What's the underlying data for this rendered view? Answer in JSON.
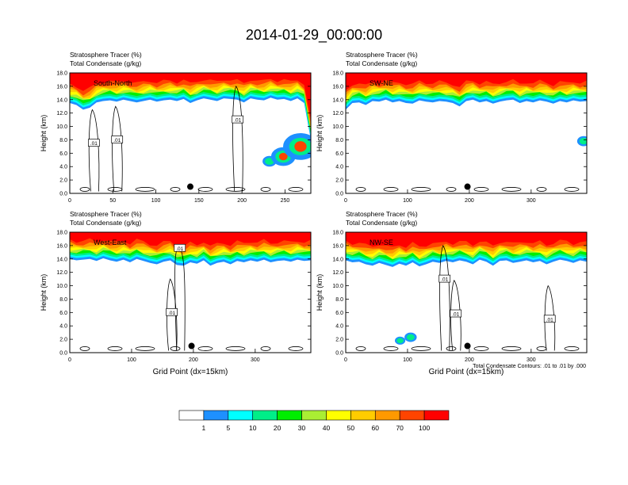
{
  "title": "2014-01-29_00:00:00",
  "colors": {
    "tracer_levels": [
      "#ffffff",
      "#1e90ff",
      "#00ffff",
      "#00ee88",
      "#00ee00",
      "#aaee33",
      "#ffff00",
      "#ffcc00",
      "#ff9900",
      "#ff4400",
      "#ff0000"
    ]
  },
  "chart_data": [
    {
      "type": "heatmap",
      "label": "South-North",
      "title_lines": [
        "Stratosphere Tracer   (%)",
        "Total Condensate   (g/kg)"
      ],
      "xlabel": "",
      "ylabel": "Height (km)",
      "xlim": [
        0,
        280
      ],
      "ylim": [
        0,
        18
      ],
      "xticks": [
        "0",
        "50",
        "100",
        "150",
        "200",
        "250"
      ],
      "xtick_values": [
        0,
        50,
        100,
        150,
        200,
        250
      ],
      "yticks": [
        "0.0",
        "2.0",
        "4.0",
        "6.0",
        "8.0",
        "10.0",
        "12.0",
        "14.0",
        "16.0",
        "18.0"
      ],
      "contour_labels": [
        {
          "text": ".01",
          "x": 28,
          "y": 7.5
        },
        {
          "text": ".01",
          "x": 55,
          "y": 8.0
        },
        {
          "text": ".01",
          "x": 195,
          "y": 11.0
        }
      ],
      "marker": {
        "x": 140,
        "y": 1.0
      },
      "tracer_base": [
        13.5,
        13.2,
        12.5,
        12.8,
        13.6,
        13.8,
        13.9,
        13.7,
        14.0,
        13.8,
        13.6,
        13.8,
        14.0,
        13.7,
        13.9,
        14.0,
        13.8,
        14.1,
        13.5,
        13.9,
        14.2,
        14.0,
        13.8,
        14.2,
        14.1,
        14.0,
        13.6,
        14.2,
        14.0,
        13.9,
        14.3,
        14.0,
        14.1,
        13.8,
        14.2,
        13.5,
        8.0
      ],
      "tracer_plume": [
        {
          "x": 232,
          "y": 4.8,
          "h": 1.6
        },
        {
          "x": 248,
          "y": 5.5,
          "h": 2.8
        },
        {
          "x": 268,
          "y": 7.0,
          "h": 4.0
        }
      ]
    },
    {
      "type": "heatmap",
      "label": "SW-NE",
      "title_lines": [
        "Stratosphere Tracer   (%)",
        "Total Condensate   (g/kg)"
      ],
      "xlabel": "",
      "ylabel": "Height (km)",
      "xlim": [
        0,
        390
      ],
      "ylim": [
        0,
        18
      ],
      "xticks": [
        "0",
        "100",
        "200",
        "300"
      ],
      "xtick_values": [
        0,
        100,
        200,
        300
      ],
      "yticks": [
        "0.0",
        "2.0",
        "4.0",
        "6.0",
        "8.0",
        "10.0",
        "12.0",
        "14.0",
        "16.0",
        "18.0"
      ],
      "contour_labels": [],
      "marker": {
        "x": 197,
        "y": 1.0
      },
      "tracer_base": [
        12.5,
        13.5,
        13.6,
        13.2,
        13.8,
        13.7,
        14.0,
        13.6,
        13.8,
        13.5,
        13.4,
        13.9,
        13.7,
        13.6,
        13.8,
        13.7,
        13.5,
        13.0,
        13.8,
        14.0,
        13.6,
        13.8,
        13.4,
        13.7,
        13.9,
        14.0,
        13.5,
        13.8,
        13.6,
        13.9,
        13.7,
        13.4,
        13.8,
        13.6,
        13.9,
        13.7,
        13.8
      ],
      "tracer_plume": [
        {
          "x": 385,
          "y": 7.8,
          "h": 1.5
        }
      ]
    },
    {
      "type": "heatmap",
      "label": "West-East",
      "title_lines": [
        "Stratosphere Tracer   (%)",
        "Total Condensate   (g/kg)"
      ],
      "xlabel": "Grid Point (dx=15km)",
      "ylabel": "Height (km)",
      "xlim": [
        0,
        390
      ],
      "ylim": [
        0,
        18
      ],
      "xticks": [
        "0",
        "100",
        "200",
        "300"
      ],
      "xtick_values": [
        0,
        100,
        200,
        300
      ],
      "yticks": [
        "0.0",
        "2.0",
        "4.0",
        "6.0",
        "8.0",
        "10.0",
        "12.0",
        "14.0",
        "16.0",
        "18.0"
      ],
      "contour_labels": [
        {
          "text": ".01",
          "x": 165,
          "y": 6.0
        },
        {
          "text": ".01",
          "x": 178,
          "y": 15.6
        }
      ],
      "marker": {
        "x": 197,
        "y": 1.0
      },
      "tracer_base": [
        14.0,
        13.8,
        13.9,
        14.0,
        13.7,
        14.1,
        13.8,
        13.6,
        13.9,
        13.5,
        14.0,
        13.7,
        13.4,
        13.2,
        13.6,
        13.8,
        13.1,
        13.0,
        13.5,
        13.3,
        13.8,
        13.0,
        13.4,
        13.6,
        13.2,
        13.7,
        13.5,
        13.8,
        13.6,
        13.9,
        13.5,
        13.7,
        13.8,
        13.6,
        13.9,
        13.7,
        13.8
      ],
      "tracer_plume": []
    },
    {
      "type": "heatmap",
      "label": "NW-SE",
      "title_lines": [
        "Stratosphere Tracer   (%)",
        "Total Condensate   (g/kg)"
      ],
      "xlabel": "Grid Point (dx=15km)",
      "ylabel": "Height (km)",
      "xlim": [
        0,
        390
      ],
      "ylim": [
        0,
        18
      ],
      "xticks": [
        "0",
        "100",
        "200",
        "300"
      ],
      "xtick_values": [
        0,
        100,
        200,
        300
      ],
      "yticks": [
        "0.0",
        "2.0",
        "4.0",
        "6.0",
        "8.0",
        "10.0",
        "12.0",
        "14.0",
        "16.0",
        "18.0"
      ],
      "contour_labels": [
        {
          "text": ".01",
          "x": 160,
          "y": 11.0
        },
        {
          "text": ".01",
          "x": 178,
          "y": 5.8
        },
        {
          "text": ".01",
          "x": 330,
          "y": 5.0
        }
      ],
      "marker": {
        "x": 197,
        "y": 1.0
      },
      "tracer_base": [
        13.8,
        13.5,
        13.6,
        13.2,
        13.0,
        13.4,
        13.1,
        12.8,
        13.3,
        13.0,
        13.5,
        12.9,
        13.2,
        13.6,
        13.4,
        13.7,
        13.5,
        13.8,
        13.6,
        13.2,
        13.9,
        13.6,
        13.0,
        13.7,
        13.8,
        13.4,
        13.6,
        13.8,
        13.5,
        13.7,
        13.2,
        13.6,
        13.9,
        13.7,
        13.4,
        13.8,
        13.6
      ],
      "tracer_plume": [
        {
          "x": 88,
          "y": 1.8,
          "h": 1.2
        },
        {
          "x": 105,
          "y": 2.3,
          "h": 1.4
        }
      ]
    }
  ],
  "footnote": "Total Condensate Contours: .01 to .01 by .000",
  "colorbar": {
    "labels": [
      "1",
      "5",
      "10",
      "20",
      "30",
      "40",
      "50",
      "60",
      "70",
      "100"
    ]
  }
}
